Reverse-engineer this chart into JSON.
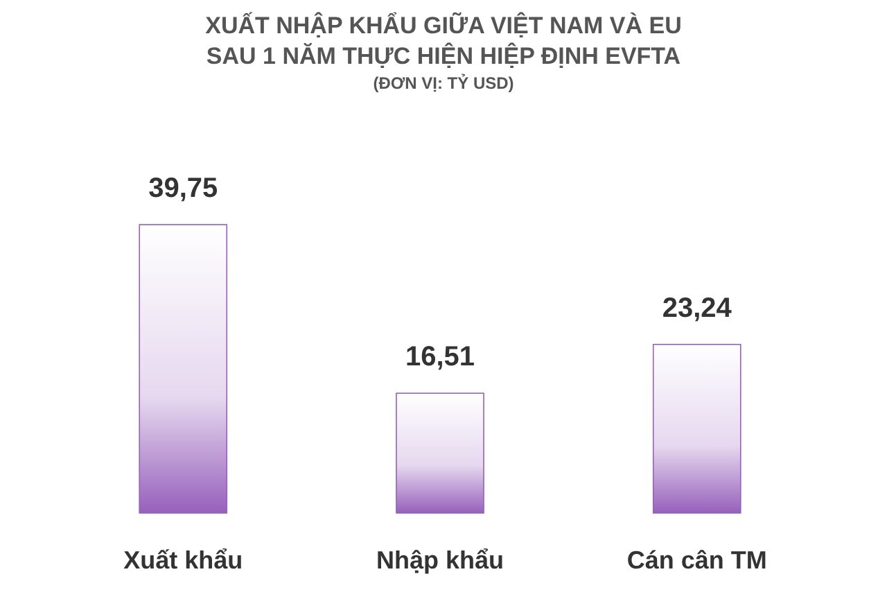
{
  "chart_data": {
    "type": "bar",
    "title": "XUẤT NHẬP KHẨU GIỮA VIỆT NAM VÀ EU\nSAU 1 NĂM THỰC HIỆN HIỆP ĐỊNH EVFTA",
    "subtitle": "(ĐƠN VỊ: TỶ USD)",
    "categories": [
      "Xuất khẩu",
      "Nhập khẩu",
      "Cán cân TM"
    ],
    "values": [
      39.75,
      16.51,
      23.24
    ],
    "color": "#9660bb",
    "value_labels": [
      "39,75",
      "16,51",
      "23,24"
    ],
    "grid": false
  }
}
